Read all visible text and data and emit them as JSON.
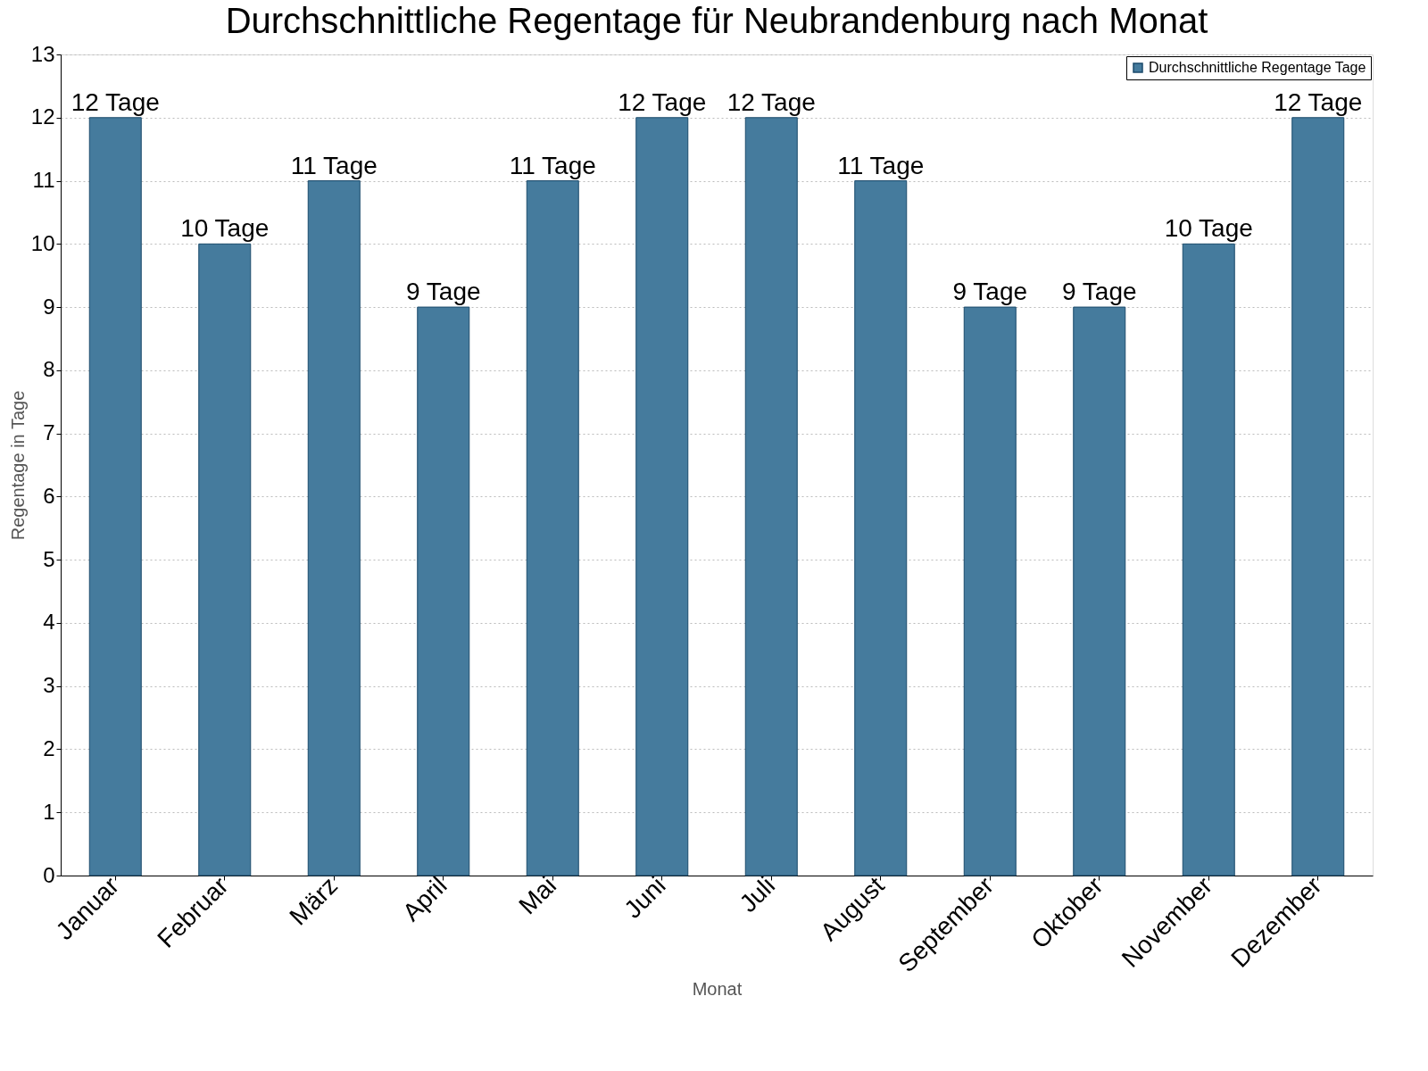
{
  "chart_data": {
    "type": "bar",
    "title": "Durchschnittliche Regentage für Neubrandenburg nach Monat",
    "xlabel": "Monat",
    "ylabel": "Regentage in Tage",
    "categories": [
      "Januar",
      "Februar",
      "März",
      "April",
      "Mai",
      "Juni",
      "Juli",
      "August",
      "September",
      "Oktober",
      "November",
      "Dezember"
    ],
    "series": [
      {
        "name": "Durchschnittliche Regentage Tage",
        "color": "#457b9d",
        "values": [
          12,
          10,
          11,
          9,
          11,
          12,
          12,
          11,
          9,
          9,
          10,
          12
        ],
        "value_labels": [
          "12 Tage",
          "10 Tage",
          "11 Tage",
          "9 Tage",
          "11 Tage",
          "12 Tage",
          "12 Tage",
          "11 Tage",
          "9 Tage",
          "9 Tage",
          "10 Tage",
          "12 Tage"
        ]
      }
    ],
    "ylim": [
      0,
      13
    ],
    "yticks": [
      0,
      1,
      2,
      3,
      4,
      5,
      6,
      7,
      8,
      9,
      10,
      11,
      12,
      13
    ],
    "grid": "y",
    "legend": "top right"
  }
}
